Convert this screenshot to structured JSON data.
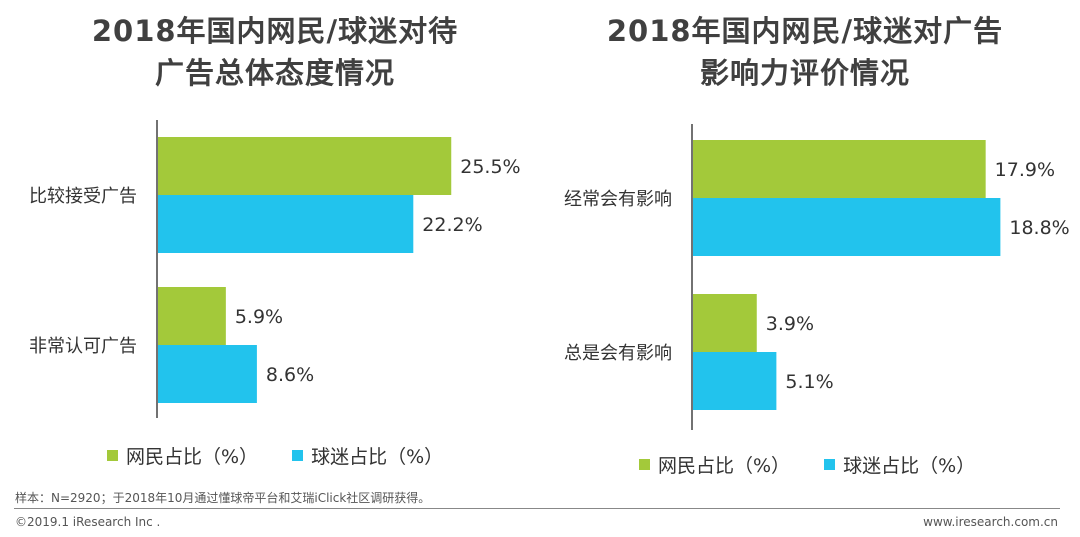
{
  "colors": {
    "netizen": "#a3c93a",
    "fan": "#22c3ed",
    "axis": "#444444"
  },
  "chart_data": [
    {
      "type": "bar",
      "orientation": "horizontal",
      "title": "2018年国内网民/球迷对待\n广告总体态度情况",
      "categories": [
        "比较接受广告",
        "非常认可广告"
      ],
      "series": [
        {
          "name": "网民占比（%）",
          "values": [
            25.5,
            5.9
          ],
          "labels": [
            "25.5%",
            "5.9%"
          ]
        },
        {
          "name": "球迷占比（%）",
          "values": [
            22.2,
            8.6
          ],
          "labels": [
            "22.2%",
            "8.6%"
          ]
        }
      ],
      "legend": "bottom",
      "grid": false
    },
    {
      "type": "bar",
      "orientation": "horizontal",
      "title": "2018年国内网民/球迷对广告\n影响力评价情况",
      "categories": [
        "经常会有影响",
        "总是会有影响"
      ],
      "series": [
        {
          "name": "网民占比（%）",
          "values": [
            17.9,
            3.9
          ],
          "labels": [
            "17.9%",
            "3.9%"
          ]
        },
        {
          "name": "球迷占比（%）",
          "values": [
            18.8,
            5.1
          ],
          "labels": [
            "18.8%",
            "5.1%"
          ]
        }
      ],
      "legend": "bottom",
      "grid": false
    }
  ],
  "footnote": "样本：N=2920；于2018年10月通过懂球帝平台和艾瑞iClick社区调研获得。",
  "copyright": "©2019.1 iResearch Inc .",
  "website": "www.iresearch.com.cn"
}
